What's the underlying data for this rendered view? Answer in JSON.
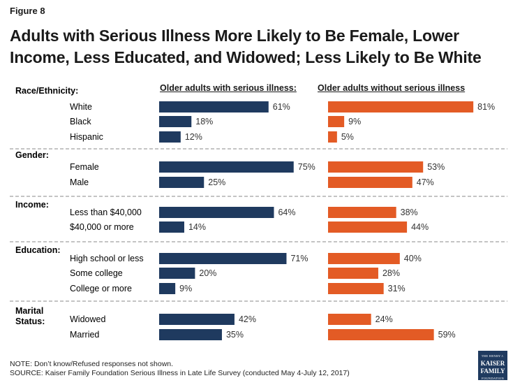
{
  "figure_label": "Figure 8",
  "title": "Adults with Serious Illness More Likely to Be Female, Lower Income, Less Educated, and Widowed; Less Likely to Be White",
  "notes": [
    "NOTE: Don’t know/Refused responses not shown.",
    "SOURCE: Kaiser Family Foundation Serious Illness in Late Life Survey (conducted May 4-July 12, 2017)"
  ],
  "logo": {
    "line1": "THE HENRY J.",
    "line2": "KAISER",
    "line3": "FAMILY",
    "line4": "FOUNDATION"
  },
  "colors": {
    "serious": "#1f3a5f",
    "without": "#e35b25",
    "divider": "#8a8a8a"
  },
  "chart_data": {
    "type": "bar",
    "orientation": "horizontal",
    "series": [
      {
        "name": "Older adults with serious illness:",
        "color": "#1f3a5f"
      },
      {
        "name": "Older adults without serious illness",
        "color": "#e35b25"
      }
    ],
    "xlim": [
      0,
      100
    ],
    "unit": "%",
    "groups": [
      {
        "label": "Race/Ethnicity:",
        "categories": [
          {
            "label": "White",
            "values": [
              61,
              81
            ]
          },
          {
            "label": "Black",
            "values": [
              18,
              9
            ]
          },
          {
            "label": "Hispanic",
            "values": [
              12,
              5
            ]
          }
        ]
      },
      {
        "label": "Gender:",
        "categories": [
          {
            "label": "Female",
            "values": [
              75,
              53
            ]
          },
          {
            "label": "Male",
            "values": [
              25,
              47
            ]
          }
        ]
      },
      {
        "label": "Income:",
        "categories": [
          {
            "label": "Less than $40,000",
            "values": [
              64,
              38
            ]
          },
          {
            "label": "$40,000 or more",
            "values": [
              14,
              44
            ]
          }
        ]
      },
      {
        "label": "Education:",
        "categories": [
          {
            "label": "High school or less",
            "values": [
              71,
              40
            ]
          },
          {
            "label": "Some college",
            "values": [
              20,
              28
            ]
          },
          {
            "label": "College or more",
            "values": [
              9,
              31
            ]
          }
        ]
      },
      {
        "label": "Marital Status:",
        "categories": [
          {
            "label": "Widowed",
            "values": [
              42,
              24
            ]
          },
          {
            "label": "Married",
            "values": [
              35,
              59
            ]
          }
        ]
      }
    ]
  }
}
